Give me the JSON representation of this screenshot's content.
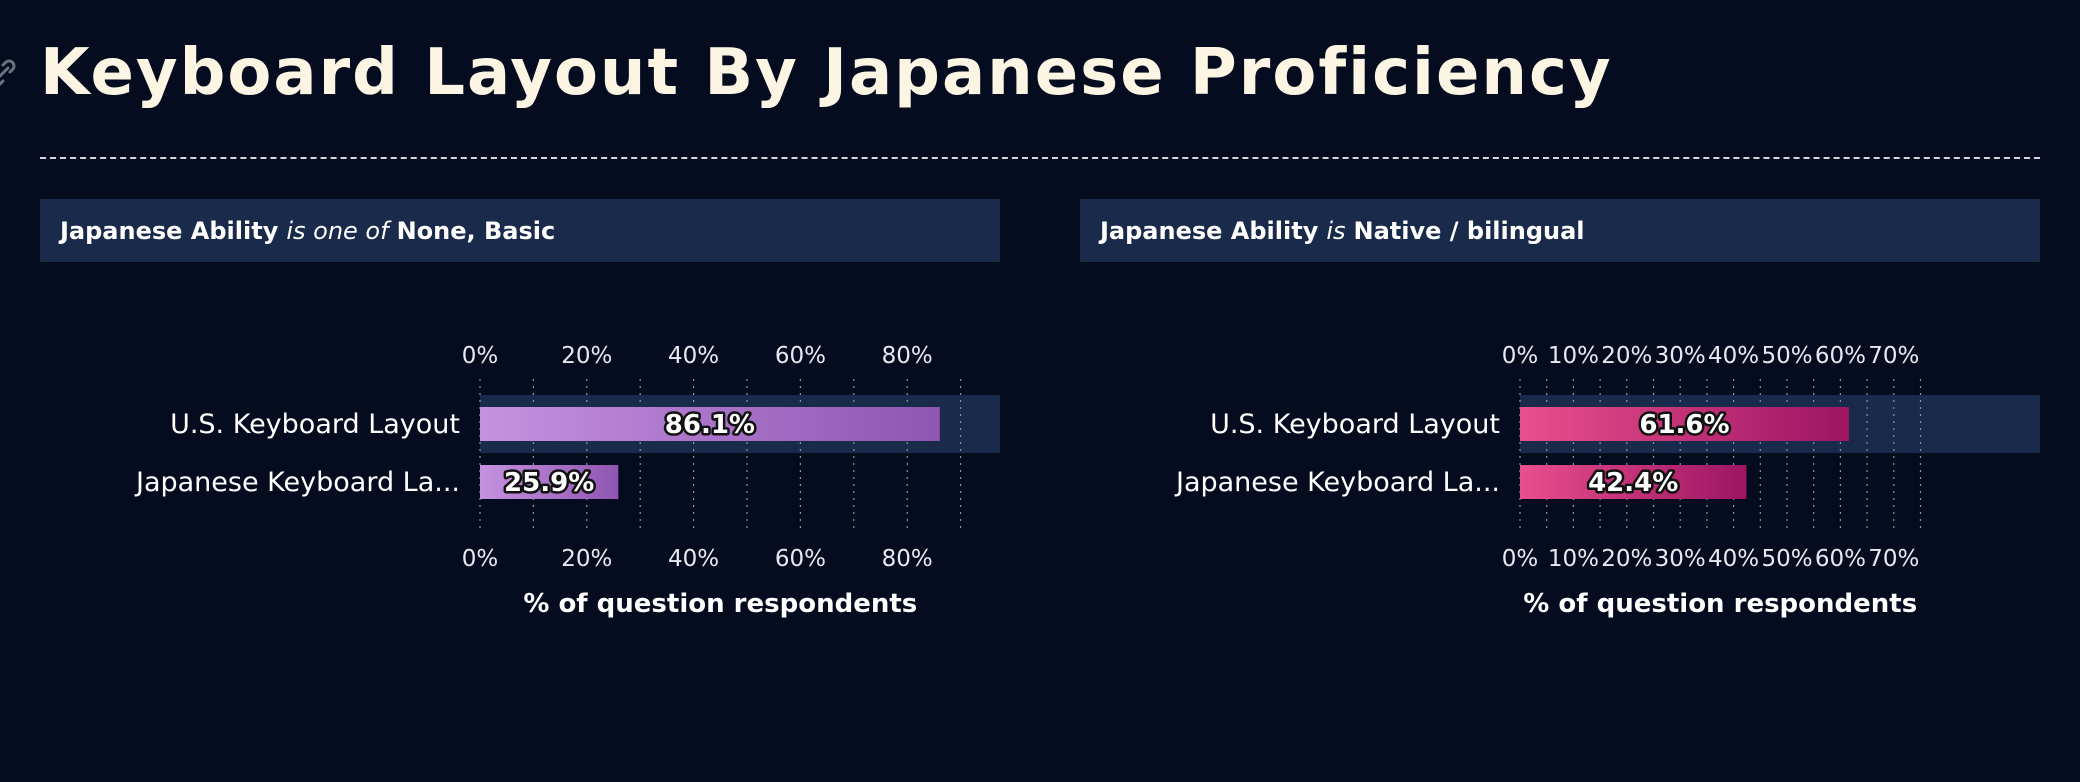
{
  "page": {
    "title": "Keyboard Layout By Japanese Proficiency",
    "anchor_icon": "link-icon"
  },
  "colors": {
    "background": "#050c1f",
    "title": "#fcf5e4",
    "panel_header_bg": "#1a2a4a",
    "row_highlight": "#1a2a4a",
    "left_bar_gradient": [
      "#c592e0",
      "#8f55b2"
    ],
    "right_bar_gradient": [
      "#e94e8c",
      "#9c1563"
    ]
  },
  "chart_data": [
    {
      "type": "bar",
      "orientation": "horizontal",
      "filter": {
        "field": "Japanese Ability",
        "operator": "is one of",
        "values": "None, Basic"
      },
      "categories": [
        "U.S. Keyboard Layout",
        "Japanese Keyboard La..."
      ],
      "values": [
        86.1,
        25.9
      ],
      "value_labels": [
        "86.1%",
        "25.9%"
      ],
      "highlighted_category": 0,
      "xlabel": "% of question respondents",
      "xlim": [
        0,
        90
      ],
      "tick_values": [
        0,
        20,
        40,
        60,
        80
      ],
      "tick_labels": [
        "0%",
        "20%",
        "40%",
        "60%",
        "80%"
      ],
      "minor_grid": [
        10,
        30,
        50,
        70,
        90
      ],
      "grid": true
    },
    {
      "type": "bar",
      "orientation": "horizontal",
      "filter": {
        "field": "Japanese Ability",
        "operator": "is",
        "values": "Native / bilingual"
      },
      "categories": [
        "U.S. Keyboard Layout",
        "Japanese Keyboard La..."
      ],
      "values": [
        61.6,
        42.4
      ],
      "value_labels": [
        "61.6%",
        "42.4%"
      ],
      "highlighted_category": 0,
      "xlabel": "% of question respondents",
      "xlim": [
        0,
        75
      ],
      "tick_values": [
        0,
        10,
        20,
        30,
        40,
        50,
        60,
        70
      ],
      "tick_labels": [
        "0%",
        "10%",
        "20%",
        "30%",
        "40%",
        "50%",
        "60%",
        "70%"
      ],
      "minor_grid": [
        5,
        15,
        25,
        35,
        45,
        55,
        65,
        75
      ],
      "grid": true
    }
  ]
}
